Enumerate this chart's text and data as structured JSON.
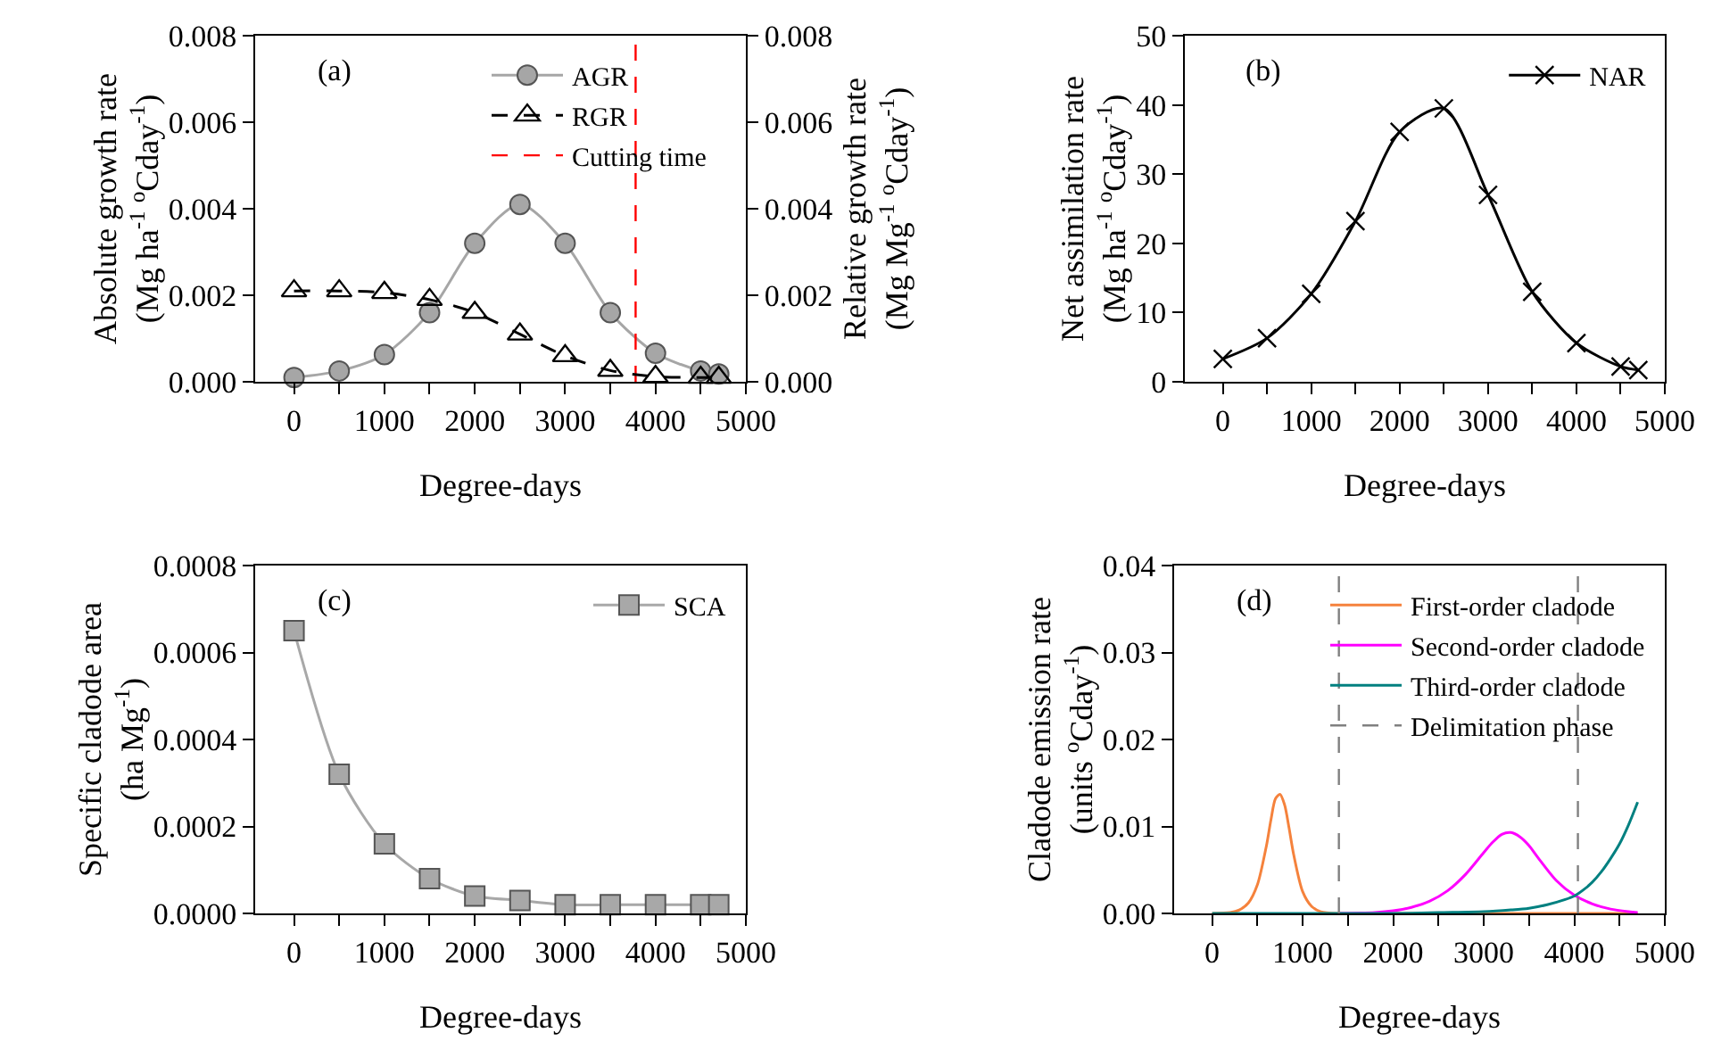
{
  "chart_data": [
    {
      "type": "line",
      "xlabel": "Degree-days",
      "ylabel": "Absolute growth rate\n(Mg ha$^{-1}$ $^{o}$Cday$^{-1}$)",
      "y2label": "Relative growth rate\n(Mg Mg$^{-1}$ $^{o}$Cday$^{-1}$)",
      "annotations": [
        "(a)"
      ],
      "x": [
        0,
        500,
        1000,
        1500,
        2000,
        2500,
        3000,
        3500,
        4000,
        4500,
        4700
      ],
      "xlim": [
        -430,
        5000
      ],
      "xticks": [
        0,
        {
          "value": 500,
          "label": null
        },
        1000,
        {
          "value": 1500,
          "label": null
        },
        2000,
        {
          "value": 2500,
          "label": null
        },
        3000,
        {
          "value": 3500,
          "label": null
        },
        4000,
        {
          "value": 4500,
          "label": null
        },
        5000
      ],
      "ylim": [
        0,
        0.008
      ],
      "yticks": [
        {
          "value": 0,
          "label": "0.000"
        },
        {
          "value": 0.002,
          "label": "0.002"
        },
        {
          "value": 0.004,
          "label": "0.004"
        },
        {
          "value": 0.006,
          "label": "0.006"
        },
        {
          "value": 0.008,
          "label": "0.008"
        }
      ],
      "y2lim": [
        0,
        0.008
      ],
      "y2ticks": [
        {
          "value": 0,
          "label": "0.000"
        },
        {
          "value": 0.002,
          "label": "0.002"
        },
        {
          "value": 0.004,
          "label": "0.004"
        },
        {
          "value": 0.006,
          "label": "0.006"
        },
        {
          "value": 0.008,
          "label": "0.008"
        }
      ],
      "grid": false,
      "legend": "top right",
      "series": [
        {
          "name": "AGR",
          "color": "#a6a6a6",
          "marker": "circle",
          "line_style": "solid",
          "values": [
            0.0001,
            0.00025,
            0.00063,
            0.0016,
            0.0032,
            0.0041,
            0.0032,
            0.0016,
            0.00066,
            0.00025,
            0.00018
          ]
        },
        {
          "name": "RGR",
          "color": "#000000",
          "marker": "triangle",
          "line_style": "dashed",
          "axis": "y2",
          "values": [
            0.0021,
            0.0021,
            0.00206,
            0.0019,
            0.0016,
            0.0011,
            0.0006,
            0.00026,
            0.00012,
            0.0001,
            0.0001
          ]
        }
      ],
      "ref_lines": [
        {
          "axis": "x",
          "value": 3780,
          "label": "Cutting time",
          "color": "#ff0000",
          "line_style": "dashed"
        }
      ]
    },
    {
      "type": "line",
      "xlabel": "Degree-days",
      "ylabel": "Net assimilation rate\n(Mg ha$^{-1}$ $^{o}$Cday$^{-1}$)",
      "annotations": [
        "(b)"
      ],
      "x": [
        0,
        500,
        1000,
        1500,
        2000,
        2500,
        3000,
        3500,
        4000,
        4500,
        4700
      ],
      "xlim": [
        -430,
        5000
      ],
      "xticks": [
        0,
        {
          "value": 500,
          "label": null
        },
        1000,
        {
          "value": 1500,
          "label": null
        },
        2000,
        {
          "value": 2500,
          "label": null
        },
        3000,
        {
          "value": 3500,
          "label": null
        },
        4000,
        {
          "value": 4500,
          "label": null
        },
        5000
      ],
      "ylim": [
        0,
        50
      ],
      "yticks": [
        0,
        10,
        20,
        30,
        40,
        50
      ],
      "grid": false,
      "legend": "top right",
      "series": [
        {
          "name": "NAR",
          "color": "#000000",
          "marker": "cross",
          "line_style": "solid",
          "values": [
            3.3,
            6.3,
            12.7,
            23.2,
            36.1,
            39.5,
            27,
            13,
            5.6,
            2.2,
            1.7
          ]
        }
      ]
    },
    {
      "type": "line",
      "xlabel": "Degree-days",
      "ylabel": "Specific cladode area\n(ha Mg$^{-1}$)",
      "annotations": [
        "(c)"
      ],
      "x": [
        0,
        500,
        1000,
        1500,
        2000,
        2500,
        3000,
        3500,
        4000,
        4500,
        4700
      ],
      "xlim": [
        -430,
        5000
      ],
      "xticks": [
        0,
        {
          "value": 500,
          "label": null
        },
        1000,
        {
          "value": 1500,
          "label": null
        },
        2000,
        {
          "value": 2500,
          "label": null
        },
        3000,
        {
          "value": 3500,
          "label": null
        },
        4000,
        {
          "value": 4500,
          "label": null
        },
        5000
      ],
      "ylim": [
        0,
        0.0008
      ],
      "yticks": [
        {
          "value": 0,
          "label": "0.0000"
        },
        {
          "value": 0.0002,
          "label": "0.0002"
        },
        {
          "value": 0.0004,
          "label": "0.0004"
        },
        {
          "value": 0.0006,
          "label": "0.0006"
        },
        {
          "value": 0.0008,
          "label": "0.0008"
        }
      ],
      "grid": false,
      "legend": "top right",
      "series": [
        {
          "name": "SCA",
          "color": "#a8a8a8",
          "marker": "square",
          "line_style": "solid",
          "values": [
            0.00065,
            0.00032,
            0.00016,
            8e-05,
            4e-05,
            3e-05,
            2e-05,
            2e-05,
            2e-05,
            2e-05,
            2e-05
          ]
        }
      ]
    },
    {
      "type": "line",
      "xlabel": "Degree-days",
      "ylabel": "Cladode emission rate\n(units $^{o}$Cday$^{-1}$)",
      "annotations": [
        "(d)"
      ],
      "xlim": [
        -420,
        5000
      ],
      "xticks": [
        0,
        {
          "value": 500,
          "label": null
        },
        1000,
        {
          "value": 1500,
          "label": null
        },
        2000,
        {
          "value": 2500,
          "label": null
        },
        3000,
        {
          "value": 3500,
          "label": null
        },
        4000,
        {
          "value": 4500,
          "label": null
        },
        5000
      ],
      "ylim": [
        0,
        0.04
      ],
      "yticks": [
        {
          "value": 0,
          "label": "0.00"
        },
        {
          "value": 0.01,
          "label": "0.01"
        },
        {
          "value": 0.02,
          "label": "0.02"
        },
        {
          "value": 0.03,
          "label": "0.03"
        },
        {
          "value": 0.04,
          "label": "0.04"
        }
      ],
      "grid": false,
      "legend": "top right",
      "marker": "none",
      "series": [
        {
          "name": "First-order cladode",
          "color": "#f5823c",
          "line_style": "solid",
          "x": [
            0,
            200,
            300,
            400,
            500,
            600,
            650,
            700,
            750,
            800,
            850,
            900,
            1000,
            1100,
            1200,
            1400,
            2000,
            3000,
            4000,
            4700
          ],
          "values": [
            0,
            0.0001,
            0.0004,
            0.0012,
            0.0033,
            0.0078,
            0.0108,
            0.0132,
            0.0137,
            0.0125,
            0.0098,
            0.0068,
            0.0025,
            0.0008,
            0.0002,
            0,
            0,
            0,
            0,
            0
          ]
        },
        {
          "name": "Second-order cladode",
          "color": "#ff00ff",
          "line_style": "solid",
          "x": [
            1400,
            1800,
            2000,
            2200,
            2400,
            2600,
            2800,
            3000,
            3100,
            3200,
            3300,
            3400,
            3500,
            3600,
            3800,
            4000,
            4200,
            4400,
            4600,
            4700
          ],
          "values": [
            0,
            0.0001,
            0.0003,
            0.0007,
            0.0014,
            0.0026,
            0.0045,
            0.007,
            0.0082,
            0.0091,
            0.0093,
            0.0088,
            0.0078,
            0.0064,
            0.0038,
            0.0021,
            0.0011,
            0.0005,
            0.0002,
            0.0001
          ]
        },
        {
          "name": "Third-order cladode",
          "color": "#008080",
          "line_style": "solid",
          "x": [
            0,
            1000,
            2000,
            2500,
            3000,
            3300,
            3500,
            3700,
            3900,
            4000,
            4100,
            4200,
            4300,
            4400,
            4500,
            4600,
            4700
          ],
          "values": [
            0,
            0,
            0,
            0.0001,
            0.0002,
            0.0004,
            0.0006,
            0.001,
            0.0016,
            0.002,
            0.0027,
            0.0036,
            0.0048,
            0.0063,
            0.008,
            0.0102,
            0.0128
          ]
        }
      ],
      "ref_lines": [
        {
          "axis": "x",
          "value": 1400,
          "label": "Delimitation phase",
          "color": "#808080",
          "line_style": "dashed"
        },
        {
          "axis": "x",
          "value": 4040,
          "color": "#808080",
          "line_style": "dashed"
        }
      ]
    }
  ]
}
